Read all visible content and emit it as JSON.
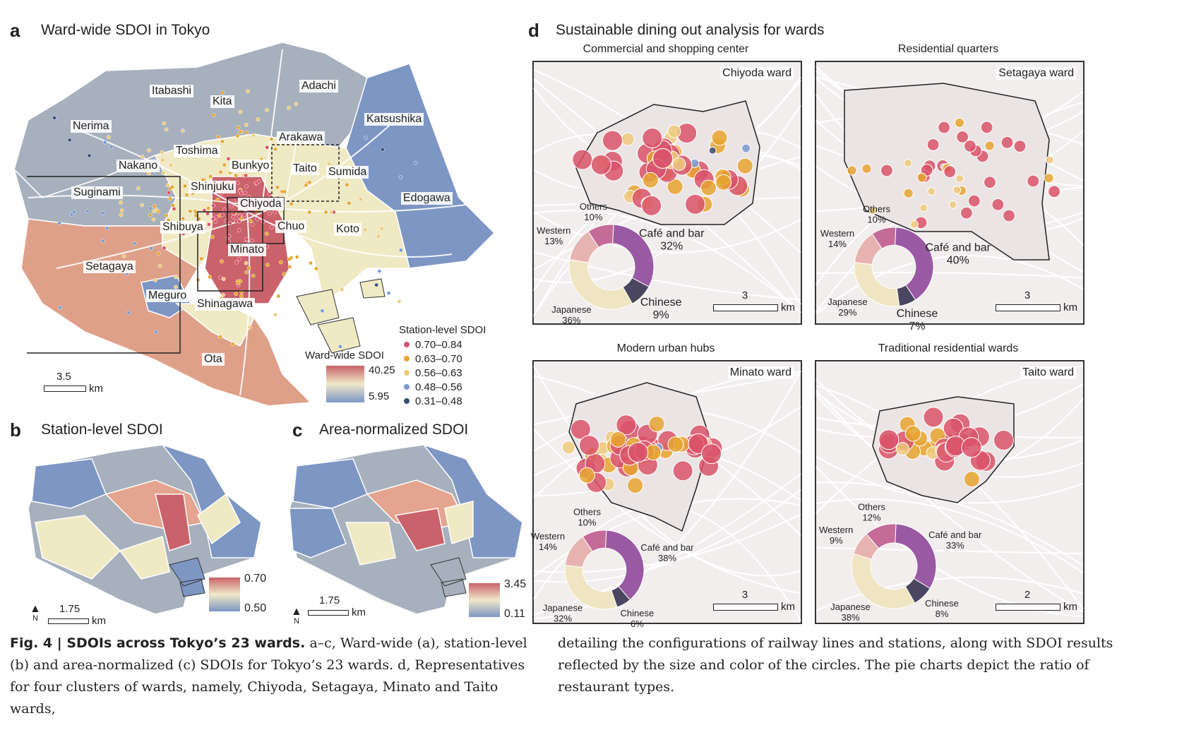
{
  "panel_a": {
    "letter": "a",
    "title": "Ward-wide SDOI in Tokyo",
    "wards": [
      "Itabashi",
      "Kita",
      "Adachi",
      "Katsushika",
      "Nerima",
      "Arakawa",
      "Toshima",
      "Nakano",
      "Bunkyo",
      "Taito",
      "Sumida",
      "Suginami",
      "Shinjuku",
      "Chiyoda",
      "Edogawa",
      "Shibuya",
      "Chuo",
      "Koto",
      "Minato",
      "Setagaya",
      "Meguro",
      "Shinagawa",
      "Ota"
    ],
    "scale_value": "3.5",
    "scale_unit": "km",
    "station_legend_title": "Station-level SDOI",
    "station_legend": [
      {
        "label": "0.70–0.84",
        "color": "#d9536a"
      },
      {
        "label": "0.63–0.70",
        "color": "#e6a530"
      },
      {
        "label": "0.56–0.63",
        "color": "#efca7a"
      },
      {
        "label": "0.48–0.56",
        "color": "#7b9bd1"
      },
      {
        "label": "0.31–0.48",
        "color": "#3b4f78"
      }
    ],
    "ward_legend_title": "Ward-wide SDOI",
    "ward_legend_max": "40.25",
    "ward_legend_min": "5.95"
  },
  "panel_b": {
    "letter": "b",
    "title": "Station-level SDOI",
    "scale_value": "1.75",
    "scale_unit": "km",
    "legend_max": "0.70",
    "legend_min": "0.50",
    "north": "N"
  },
  "panel_c": {
    "letter": "c",
    "title": "Area-normalized SDOI",
    "scale_value": "1.75",
    "scale_unit": "km",
    "legend_max": "3.45",
    "legend_min": "0.11",
    "north": "N"
  },
  "panel_d": {
    "letter": "d",
    "title": "Sustainable dining out analysis for wards",
    "maps": [
      {
        "category": "Commercial and shopping center",
        "ward": "Chiyoda ward",
        "scale_value": "3",
        "scale_unit": "km",
        "pie": [
          {
            "label": "Café and bar",
            "pct": "32%",
            "value": 32,
            "color": "#9a5aa3"
          },
          {
            "label": "Chinese",
            "pct": "9%",
            "value": 9,
            "color": "#4a4560"
          },
          {
            "label": "Japanese",
            "pct": "36%",
            "value": 36,
            "color": "#f0e5c2"
          },
          {
            "label": "Western",
            "pct": "13%",
            "value": 13,
            "color": "#e7b3b0"
          },
          {
            "label": "Others",
            "pct": "10%",
            "value": 10,
            "color": "#c56b98"
          }
        ]
      },
      {
        "category": "Residential quarters",
        "ward": "Setagaya ward",
        "scale_value": "3",
        "scale_unit": "km",
        "pie": [
          {
            "label": "Café and bar",
            "pct": "40%",
            "value": 40,
            "color": "#9a5aa3"
          },
          {
            "label": "Chinese",
            "pct": "7%",
            "value": 7,
            "color": "#4a4560"
          },
          {
            "label": "Japanese",
            "pct": "29%",
            "value": 29,
            "color": "#f0e5c2"
          },
          {
            "label": "Western",
            "pct": "14%",
            "value": 14,
            "color": "#e7b3b0"
          },
          {
            "label": "Others",
            "pct": "10%",
            "value": 10,
            "color": "#c56b98"
          }
        ]
      },
      {
        "category": "Modern urban hubs",
        "ward": "Minato ward",
        "scale_value": "3",
        "scale_unit": "km",
        "pie": [
          {
            "label": "Café and bar",
            "pct": "38%",
            "value": 38,
            "color": "#9a5aa3"
          },
          {
            "label": "Chinese",
            "pct": "6%",
            "value": 6,
            "color": "#4a4560"
          },
          {
            "label": "Japanese",
            "pct": "32%",
            "value": 32,
            "color": "#f0e5c2"
          },
          {
            "label": "Western",
            "pct": "14%",
            "value": 14,
            "color": "#e7b3b0"
          },
          {
            "label": "Others",
            "pct": "10%",
            "value": 10,
            "color": "#c56b98"
          }
        ]
      },
      {
        "category": "Traditional residential wards",
        "ward": "Taito ward",
        "scale_value": "2",
        "scale_unit": "km",
        "pie": [
          {
            "label": "Café and bar",
            "pct": "33%",
            "value": 33,
            "color": "#9a5aa3"
          },
          {
            "label": "Chinese",
            "pct": "8%",
            "value": 8,
            "color": "#4a4560"
          },
          {
            "label": "Japanese",
            "pct": "38%",
            "value": 38,
            "color": "#f0e5c2"
          },
          {
            "label": "Western",
            "pct": "9%",
            "value": 9,
            "color": "#e7b3b0"
          },
          {
            "label": "Others",
            "pct": "12%",
            "value": 12,
            "color": "#c56b98"
          }
        ]
      }
    ]
  },
  "caption": {
    "fig": "Fig. 4 | SDOIs across Tokyo’s 23 wards.",
    "left": " a–c, Ward-wide (a), station-level (b) and area-normalized (c) SDOIs for Tokyo’s 23 wards. d, Representatives for four clusters of wards, namely, Chiyoda, Setagaya, Minato and Taito wards,",
    "right": "detailing the configurations of railway lines and stations, along with SDOI results reflected by the size and color of the circles. The pie charts depict the ratio of restaurant types."
  }
}
